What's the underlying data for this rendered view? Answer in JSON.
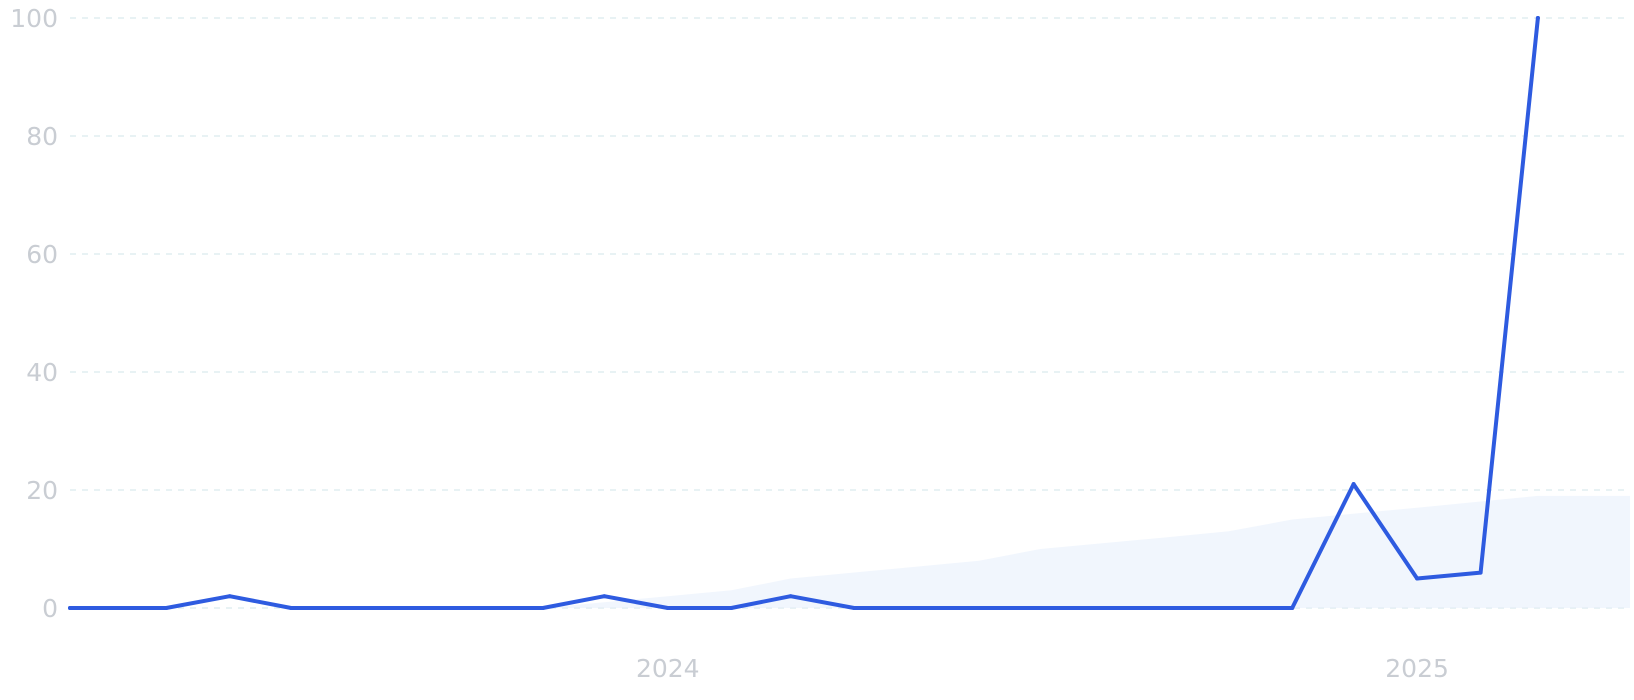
{
  "chart_data": {
    "type": "line",
    "x_ticks": [
      "2024",
      "2025"
    ],
    "y_ticks": [
      "0",
      "20",
      "40",
      "60",
      "80",
      "100"
    ],
    "ylim": [
      0,
      100
    ],
    "xlim": [
      "2023-03-15",
      "2025-04-15"
    ],
    "grid": true,
    "colors": {
      "line": "#2e5be0",
      "area": "#e8f0fc",
      "grid": "#d9e9ee",
      "tick": "#c9cdd3"
    },
    "series": [
      {
        "values": [
          {
            "x": "2023-03-15",
            "y": 0
          },
          {
            "x": "2023-05-01",
            "y": 0
          },
          {
            "x": "2023-06-01",
            "y": 2
          },
          {
            "x": "2023-07-01",
            "y": 0
          },
          {
            "x": "2023-11-01",
            "y": 0
          },
          {
            "x": "2023-12-01",
            "y": 2
          },
          {
            "x": "2024-01-01",
            "y": 0
          },
          {
            "x": "2024-02-01",
            "y": 0
          },
          {
            "x": "2024-03-01",
            "y": 2
          },
          {
            "x": "2024-04-01",
            "y": 0
          },
          {
            "x": "2024-11-01",
            "y": 0
          },
          {
            "x": "2024-12-01",
            "y": 21
          },
          {
            "x": "2025-01-01",
            "y": 5
          },
          {
            "x": "2025-02-01",
            "y": 6
          },
          {
            "x": "2025-03-01",
            "y": 100
          }
        ]
      },
      {
        "values": [
          {
            "x": "2023-11-01",
            "y": 0
          },
          {
            "x": "2024-01-01",
            "y": 2
          },
          {
            "x": "2024-02-01",
            "y": 3
          },
          {
            "x": "2024-03-01",
            "y": 5
          },
          {
            "x": "2024-06-01",
            "y": 8
          },
          {
            "x": "2024-07-01",
            "y": 10
          },
          {
            "x": "2024-09-01",
            "y": 12
          },
          {
            "x": "2024-10-01",
            "y": 13
          },
          {
            "x": "2024-11-01",
            "y": 15
          },
          {
            "x": "2025-01-01",
            "y": 17
          },
          {
            "x": "2025-03-01",
            "y": 19
          }
        ]
      }
    ]
  }
}
